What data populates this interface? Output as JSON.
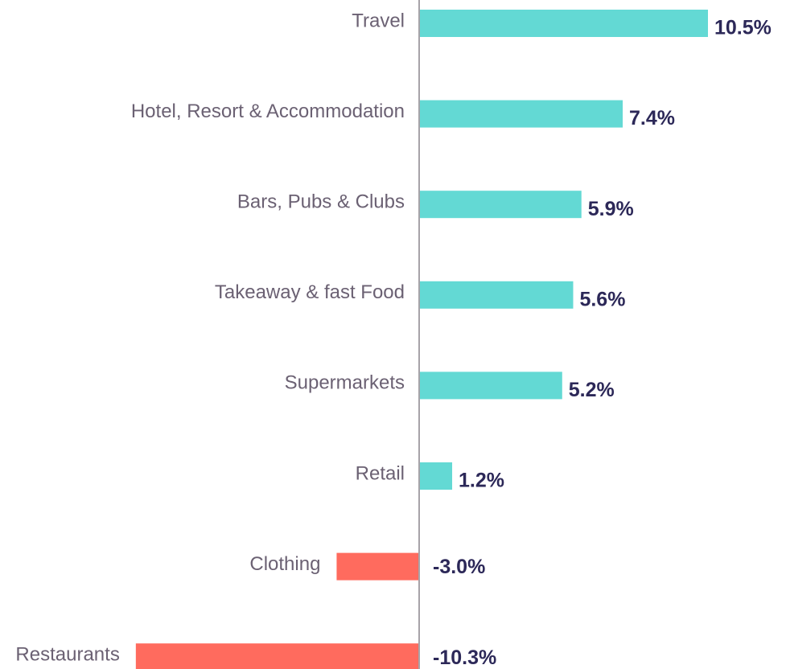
{
  "chart_data": {
    "type": "bar",
    "orientation": "horizontal",
    "categories": [
      "Travel",
      "Hotel, Resort & Accommodation",
      "Bars, Pubs & Clubs",
      "Takeaway & fast Food",
      "Supermarkets",
      "Retail",
      "Clothing",
      "Restaurants"
    ],
    "values": [
      10.5,
      7.4,
      5.9,
      5.6,
      5.2,
      1.2,
      -3.0,
      -10.3
    ],
    "value_labels": [
      "10.5%",
      "7.4%",
      "5.9%",
      "5.6%",
      "5.2%",
      "1.2%",
      "-3.0%",
      "-10.3%"
    ],
    "positive_color": "#63d9d4",
    "negative_color": "#ff6b5e"
  }
}
